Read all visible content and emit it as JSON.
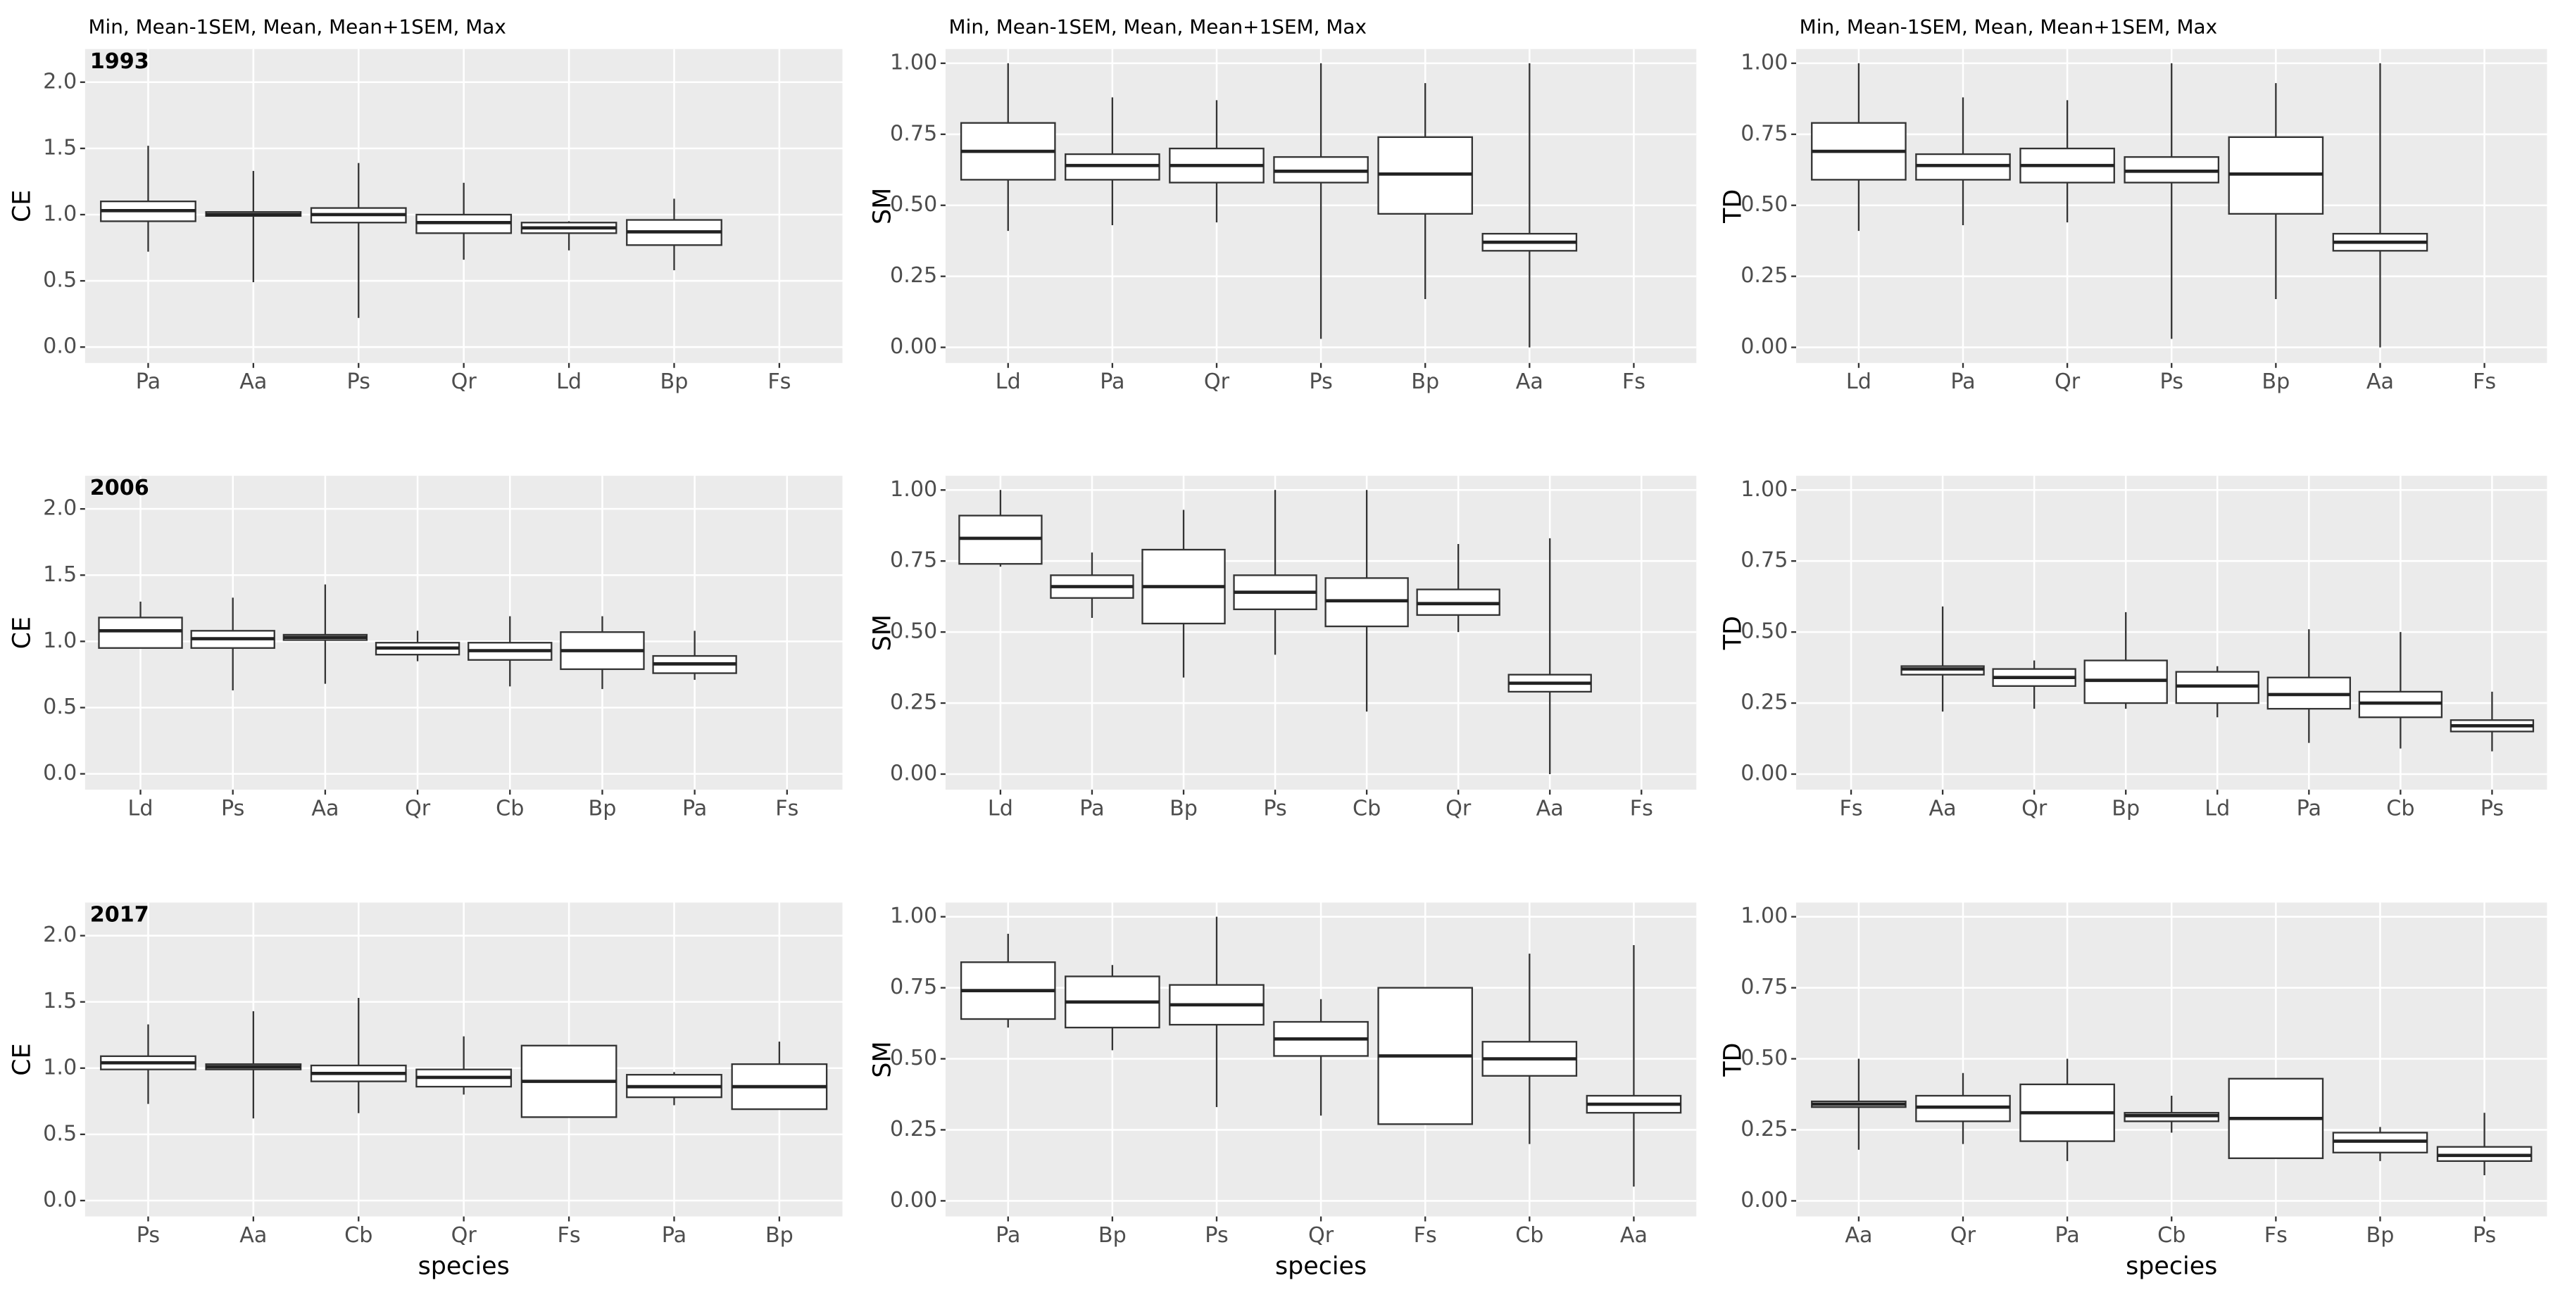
{
  "chart_data": [
    {
      "type": "box",
      "subtitle": "Min, Mean-1SEM, Mean, Mean+1SEM, Max",
      "panel_label": "1993",
      "ylabel": "CE",
      "categories": [
        "Pa",
        "Aa",
        "Ps",
        "Qr",
        "Ld",
        "Bp",
        "Fs"
      ],
      "boxes": [
        {
          "min": 0.72,
          "mean_minus_sem": 0.95,
          "mean": 1.03,
          "mean_plus_sem": 1.1,
          "max": 1.52
        },
        {
          "min": 0.49,
          "mean_minus_sem": 0.99,
          "mean": 1.0,
          "mean_plus_sem": 1.02,
          "max": 1.33
        },
        {
          "min": 0.22,
          "mean_minus_sem": 0.94,
          "mean": 1.0,
          "mean_plus_sem": 1.05,
          "max": 1.39
        },
        {
          "min": 0.66,
          "mean_minus_sem": 0.86,
          "mean": 0.94,
          "mean_plus_sem": 1.0,
          "max": 1.24
        },
        {
          "min": 0.73,
          "mean_minus_sem": 0.86,
          "mean": 0.9,
          "mean_plus_sem": 0.94,
          "max": 0.95
        },
        {
          "min": 0.58,
          "mean_minus_sem": 0.77,
          "mean": 0.87,
          "mean_plus_sem": 0.96,
          "max": 1.12
        },
        null
      ],
      "ylim": [
        -0.12,
        2.25
      ],
      "yticks": [
        {
          "value": 0,
          "label": "0.0"
        },
        0.5,
        {
          "value": 1,
          "label": "1.0"
        },
        1.5,
        {
          "value": 2,
          "label": "2.0"
        }
      ],
      "grid": true
    },
    {
      "type": "box",
      "subtitle": "Min, Mean-1SEM, Mean, Mean+1SEM, Max",
      "ylabel": "SM",
      "categories": [
        "Ld",
        "Pa",
        "Qr",
        "Ps",
        "Bp",
        "Aa",
        "Fs"
      ],
      "boxes": [
        {
          "min": 0.41,
          "mean_minus_sem": 0.59,
          "mean": 0.69,
          "mean_plus_sem": 0.79,
          "max": 1.0
        },
        {
          "min": 0.43,
          "mean_minus_sem": 0.59,
          "mean": 0.64,
          "mean_plus_sem": 0.68,
          "max": 0.88
        },
        {
          "min": 0.44,
          "mean_minus_sem": 0.58,
          "mean": 0.64,
          "mean_plus_sem": 0.7,
          "max": 0.87
        },
        {
          "min": 0.03,
          "mean_minus_sem": 0.58,
          "mean": 0.62,
          "mean_plus_sem": 0.67,
          "max": 1.0
        },
        {
          "min": 0.17,
          "mean_minus_sem": 0.47,
          "mean": 0.61,
          "mean_plus_sem": 0.74,
          "max": 0.93
        },
        {
          "min": 0.0,
          "mean_minus_sem": 0.34,
          "mean": 0.37,
          "mean_plus_sem": 0.4,
          "max": 1.0
        },
        null
      ],
      "ylim": [
        -0.055,
        1.05
      ],
      "yticks": [
        {
          "value": 0,
          "label": "0.00"
        },
        0.25,
        {
          "value": 0.5,
          "label": "0.50"
        },
        0.75,
        {
          "value": 1,
          "label": "1.00"
        }
      ],
      "grid": true
    },
    {
      "type": "box",
      "subtitle": "Min, Mean-1SEM, Mean, Mean+1SEM, Max",
      "ylabel": "TD",
      "categories": [
        "Ld",
        "Pa",
        "Qr",
        "Ps",
        "Bp",
        "Aa",
        "Fs"
      ],
      "boxes": [
        {
          "min": 0.41,
          "mean_minus_sem": 0.59,
          "mean": 0.69,
          "mean_plus_sem": 0.79,
          "max": 1.0
        },
        {
          "min": 0.43,
          "mean_minus_sem": 0.59,
          "mean": 0.64,
          "mean_plus_sem": 0.68,
          "max": 0.88
        },
        {
          "min": 0.44,
          "mean_minus_sem": 0.58,
          "mean": 0.64,
          "mean_plus_sem": 0.7,
          "max": 0.87
        },
        {
          "min": 0.03,
          "mean_minus_sem": 0.58,
          "mean": 0.62,
          "mean_plus_sem": 0.67,
          "max": 1.0
        },
        {
          "min": 0.17,
          "mean_minus_sem": 0.47,
          "mean": 0.61,
          "mean_plus_sem": 0.74,
          "max": 0.93
        },
        {
          "min": 0.0,
          "mean_minus_sem": 0.34,
          "mean": 0.37,
          "mean_plus_sem": 0.4,
          "max": 1.0
        },
        null
      ],
      "ylim": [
        -0.055,
        1.05
      ],
      "yticks": [
        {
          "value": 0,
          "label": "0.00"
        },
        0.25,
        {
          "value": 0.5,
          "label": "0.50"
        },
        0.75,
        {
          "value": 1,
          "label": "1.00"
        }
      ],
      "grid": true
    },
    {
      "type": "box",
      "panel_label": "2006",
      "ylabel": "CE",
      "categories": [
        "Ld",
        "Ps",
        "Aa",
        "Qr",
        "Cb",
        "Bp",
        "Pa",
        "Fs"
      ],
      "boxes": [
        {
          "min": 0.95,
          "mean_minus_sem": 0.95,
          "mean": 1.08,
          "mean_plus_sem": 1.18,
          "max": 1.3
        },
        {
          "min": 0.63,
          "mean_minus_sem": 0.95,
          "mean": 1.02,
          "mean_plus_sem": 1.08,
          "max": 1.33
        },
        {
          "min": 0.68,
          "mean_minus_sem": 1.01,
          "mean": 1.03,
          "mean_plus_sem": 1.05,
          "max": 1.43
        },
        {
          "min": 0.85,
          "mean_minus_sem": 0.9,
          "mean": 0.95,
          "mean_plus_sem": 0.99,
          "max": 1.08
        },
        {
          "min": 0.66,
          "mean_minus_sem": 0.86,
          "mean": 0.93,
          "mean_plus_sem": 0.99,
          "max": 1.19
        },
        {
          "min": 0.64,
          "mean_minus_sem": 0.79,
          "mean": 0.93,
          "mean_plus_sem": 1.07,
          "max": 1.19
        },
        {
          "min": 0.71,
          "mean_minus_sem": 0.76,
          "mean": 0.83,
          "mean_plus_sem": 0.89,
          "max": 1.08
        },
        null
      ],
      "ylim": [
        -0.12,
        2.25
      ],
      "yticks": [
        {
          "value": 0,
          "label": "0.0"
        },
        0.5,
        {
          "value": 1,
          "label": "1.0"
        },
        1.5,
        {
          "value": 2,
          "label": "2.0"
        }
      ],
      "grid": true
    },
    {
      "type": "box",
      "ylabel": "SM",
      "categories": [
        "Ld",
        "Pa",
        "Bp",
        "Ps",
        "Cb",
        "Qr",
        "Aa",
        "Fs"
      ],
      "boxes": [
        {
          "min": 0.73,
          "mean_minus_sem": 0.74,
          "mean": 0.83,
          "mean_plus_sem": 0.91,
          "max": 1.0
        },
        {
          "min": 0.55,
          "mean_minus_sem": 0.62,
          "mean": 0.66,
          "mean_plus_sem": 0.7,
          "max": 0.78
        },
        {
          "min": 0.34,
          "mean_minus_sem": 0.53,
          "mean": 0.66,
          "mean_plus_sem": 0.79,
          "max": 0.93
        },
        {
          "min": 0.42,
          "mean_minus_sem": 0.58,
          "mean": 0.64,
          "mean_plus_sem": 0.7,
          "max": 1.0
        },
        {
          "min": 0.22,
          "mean_minus_sem": 0.52,
          "mean": 0.61,
          "mean_plus_sem": 0.69,
          "max": 1.0
        },
        {
          "min": 0.5,
          "mean_minus_sem": 0.56,
          "mean": 0.6,
          "mean_plus_sem": 0.65,
          "max": 0.81
        },
        {
          "min": 0.0,
          "mean_minus_sem": 0.29,
          "mean": 0.32,
          "mean_plus_sem": 0.35,
          "max": 0.83
        },
        null
      ],
      "ylim": [
        -0.055,
        1.05
      ],
      "yticks": [
        {
          "value": 0,
          "label": "0.00"
        },
        0.25,
        {
          "value": 0.5,
          "label": "0.50"
        },
        0.75,
        {
          "value": 1,
          "label": "1.00"
        }
      ],
      "grid": true
    },
    {
      "type": "box",
      "ylabel": "TD",
      "categories": [
        "Fs",
        "Aa",
        "Qr",
        "Bp",
        "Ld",
        "Pa",
        "Cb",
        "Ps"
      ],
      "boxes": [
        null,
        {
          "min": 0.22,
          "mean_minus_sem": 0.35,
          "mean": 0.37,
          "mean_plus_sem": 0.38,
          "max": 0.59
        },
        {
          "min": 0.23,
          "mean_minus_sem": 0.31,
          "mean": 0.34,
          "mean_plus_sem": 0.37,
          "max": 0.4
        },
        {
          "min": 0.23,
          "mean_minus_sem": 0.25,
          "mean": 0.33,
          "mean_plus_sem": 0.4,
          "max": 0.57
        },
        {
          "min": 0.2,
          "mean_minus_sem": 0.25,
          "mean": 0.31,
          "mean_plus_sem": 0.36,
          "max": 0.38
        },
        {
          "min": 0.11,
          "mean_minus_sem": 0.23,
          "mean": 0.28,
          "mean_plus_sem": 0.34,
          "max": 0.51
        },
        {
          "min": 0.09,
          "mean_minus_sem": 0.2,
          "mean": 0.25,
          "mean_plus_sem": 0.29,
          "max": 0.5
        },
        {
          "min": 0.08,
          "mean_minus_sem": 0.15,
          "mean": 0.17,
          "mean_plus_sem": 0.19,
          "max": 0.29
        }
      ],
      "ylim": [
        -0.055,
        1.05
      ],
      "yticks": [
        {
          "value": 0,
          "label": "0.00"
        },
        0.25,
        {
          "value": 0.5,
          "label": "0.50"
        },
        0.75,
        {
          "value": 1,
          "label": "1.00"
        }
      ],
      "grid": true
    },
    {
      "type": "box",
      "panel_label": "2017",
      "ylabel": "CE",
      "xlabel": "species",
      "categories": [
        "Ps",
        "Aa",
        "Cb",
        "Qr",
        "Fs",
        "Pa",
        "Bp"
      ],
      "boxes": [
        {
          "min": 0.73,
          "mean_minus_sem": 0.99,
          "mean": 1.04,
          "mean_plus_sem": 1.09,
          "max": 1.33
        },
        {
          "min": 0.62,
          "mean_minus_sem": 0.99,
          "mean": 1.01,
          "mean_plus_sem": 1.03,
          "max": 1.43
        },
        {
          "min": 0.66,
          "mean_minus_sem": 0.9,
          "mean": 0.96,
          "mean_plus_sem": 1.02,
          "max": 1.53
        },
        {
          "min": 0.8,
          "mean_minus_sem": 0.86,
          "mean": 0.93,
          "mean_plus_sem": 0.99,
          "max": 1.24
        },
        {
          "min": 0.63,
          "mean_minus_sem": 0.63,
          "mean": 0.9,
          "mean_plus_sem": 1.17,
          "max": 1.17
        },
        {
          "min": 0.72,
          "mean_minus_sem": 0.78,
          "mean": 0.86,
          "mean_plus_sem": 0.95,
          "max": 0.97
        },
        {
          "min": 0.69,
          "mean_minus_sem": 0.69,
          "mean": 0.86,
          "mean_plus_sem": 1.03,
          "max": 1.2
        }
      ],
      "ylim": [
        -0.12,
        2.25
      ],
      "yticks": [
        {
          "value": 0,
          "label": "0.0"
        },
        0.5,
        {
          "value": 1,
          "label": "1.0"
        },
        1.5,
        {
          "value": 2,
          "label": "2.0"
        }
      ],
      "grid": true
    },
    {
      "type": "box",
      "ylabel": "SM",
      "xlabel": "species",
      "categories": [
        "Pa",
        "Bp",
        "Ps",
        "Qr",
        "Fs",
        "Cb",
        "Aa"
      ],
      "boxes": [
        {
          "min": 0.61,
          "mean_minus_sem": 0.64,
          "mean": 0.74,
          "mean_plus_sem": 0.84,
          "max": 0.94
        },
        {
          "min": 0.53,
          "mean_minus_sem": 0.61,
          "mean": 0.7,
          "mean_plus_sem": 0.79,
          "max": 0.83
        },
        {
          "min": 0.33,
          "mean_minus_sem": 0.62,
          "mean": 0.69,
          "mean_plus_sem": 0.76,
          "max": 1.0
        },
        {
          "min": 0.3,
          "mean_minus_sem": 0.51,
          "mean": 0.57,
          "mean_plus_sem": 0.63,
          "max": 0.71
        },
        {
          "min": 0.27,
          "mean_minus_sem": 0.27,
          "mean": 0.51,
          "mean_plus_sem": 0.75,
          "max": 0.75
        },
        {
          "min": 0.2,
          "mean_minus_sem": 0.44,
          "mean": 0.5,
          "mean_plus_sem": 0.56,
          "max": 0.87
        },
        {
          "min": 0.05,
          "mean_minus_sem": 0.31,
          "mean": 0.34,
          "mean_plus_sem": 0.37,
          "max": 0.9
        }
      ],
      "ylim": [
        -0.055,
        1.05
      ],
      "yticks": [
        {
          "value": 0,
          "label": "0.00"
        },
        0.25,
        {
          "value": 0.5,
          "label": "0.50"
        },
        0.75,
        {
          "value": 1,
          "label": "1.00"
        }
      ],
      "grid": true
    },
    {
      "type": "box",
      "ylabel": "TD",
      "xlabel": "species",
      "categories": [
        "Aa",
        "Qr",
        "Pa",
        "Cb",
        "Fs",
        "Bp",
        "Ps"
      ],
      "boxes": [
        {
          "min": 0.18,
          "mean_minus_sem": 0.33,
          "mean": 0.34,
          "mean_plus_sem": 0.35,
          "max": 0.5
        },
        {
          "min": 0.2,
          "mean_minus_sem": 0.28,
          "mean": 0.33,
          "mean_plus_sem": 0.37,
          "max": 0.45
        },
        {
          "min": 0.14,
          "mean_minus_sem": 0.21,
          "mean": 0.31,
          "mean_plus_sem": 0.41,
          "max": 0.5
        },
        {
          "min": 0.24,
          "mean_minus_sem": 0.28,
          "mean": 0.3,
          "mean_plus_sem": 0.31,
          "max": 0.37
        },
        {
          "min": 0.15,
          "mean_minus_sem": 0.15,
          "mean": 0.29,
          "mean_plus_sem": 0.43,
          "max": 0.43
        },
        {
          "min": 0.14,
          "mean_minus_sem": 0.17,
          "mean": 0.21,
          "mean_plus_sem": 0.24,
          "max": 0.26
        },
        {
          "min": 0.09,
          "mean_minus_sem": 0.14,
          "mean": 0.16,
          "mean_plus_sem": 0.19,
          "max": 0.31
        }
      ],
      "ylim": [
        -0.055,
        1.05
      ],
      "yticks": [
        {
          "value": 0,
          "label": "0.00"
        },
        0.25,
        {
          "value": 0.5,
          "label": "0.50"
        },
        0.75,
        {
          "value": 1,
          "label": "1.00"
        }
      ],
      "grid": true
    }
  ]
}
